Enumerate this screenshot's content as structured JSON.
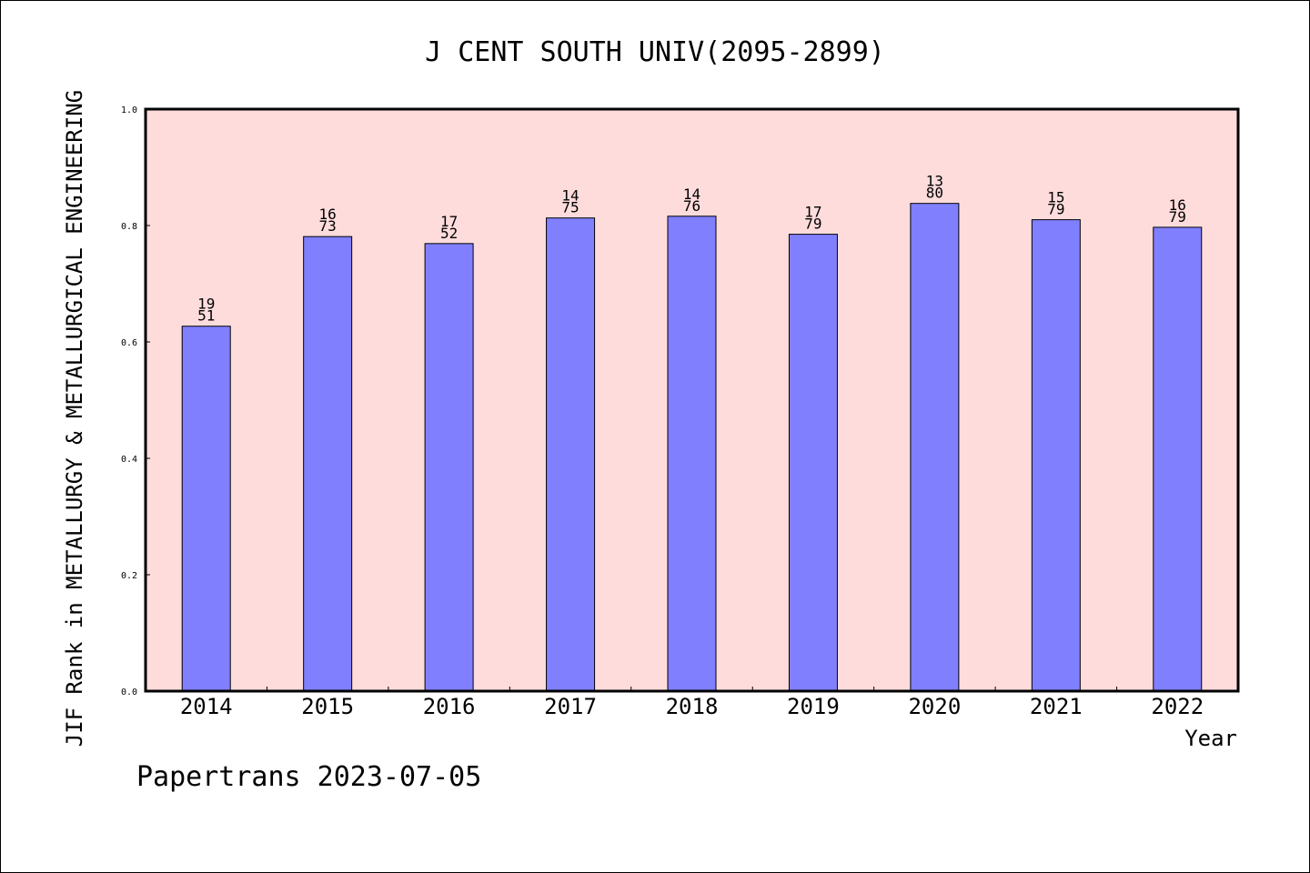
{
  "chart_data": {
    "type": "bar",
    "title": "J CENT SOUTH UNIV(2095-2899)",
    "xlabel": "Year",
    "ylabel": "JIF Rank in METALLURGY & METALLURGICAL ENGINEERING",
    "categories": [
      "2014",
      "2015",
      "2016",
      "2017",
      "2018",
      "2019",
      "2020",
      "2021",
      "2022"
    ],
    "values": [
      0.627,
      0.781,
      0.769,
      0.813,
      0.816,
      0.785,
      0.838,
      0.81,
      0.797
    ],
    "labels_top": [
      "19",
      "16",
      "17",
      "14",
      "14",
      "17",
      "13",
      "15",
      "16"
    ],
    "labels_bottom": [
      "51",
      "73",
      "52",
      "75",
      "76",
      "79",
      "80",
      "79",
      "79"
    ],
    "ylim": [
      0.0,
      1.0
    ],
    "yticks": [
      "0.0",
      "0.2",
      "0.4",
      "0.6",
      "0.8",
      "1.0"
    ],
    "bar_color": "#8080ff",
    "plot_background": "#ffdcdc",
    "grid": false
  },
  "footer": {
    "credit": "Papertrans 2023-07-05"
  }
}
